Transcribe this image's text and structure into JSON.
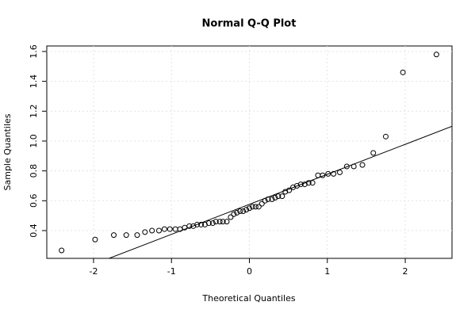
{
  "chart_data": {
    "type": "scatter",
    "title": "Normal Q-Q Plot",
    "x_label": "Theoretical Quantiles",
    "y_label": "Sample Quantiles",
    "series": [
      {
        "color": "#000000",
        "x": [
          -2.41,
          -1.98,
          -1.74,
          -1.58,
          -1.44,
          -1.34,
          -1.25,
          -1.16,
          -1.09,
          -1.02,
          -0.95,
          -0.89,
          -0.83,
          -0.77,
          -0.72,
          -0.67,
          -0.62,
          -0.57,
          -0.52,
          -0.47,
          -0.43,
          -0.38,
          -0.34,
          -0.29,
          -0.24,
          -0.2,
          -0.16,
          -0.12,
          -0.08,
          -0.04,
          0,
          0.04,
          0.08,
          0.12,
          0.16,
          0.2,
          0.24,
          0.29,
          0.33,
          0.37,
          0.42,
          0.46,
          0.51,
          0.56,
          0.61,
          0.66,
          0.71,
          0.76,
          0.81,
          0.88,
          0.94,
          1.01,
          1.08,
          1.16,
          1.25,
          1.34,
          1.45,
          1.59,
          1.75,
          1.97,
          2.4
        ],
        "values": [
          0.267,
          0.34,
          0.37,
          0.37,
          0.37,
          0.39,
          0.4,
          0.4,
          0.41,
          0.41,
          0.41,
          0.41,
          0.42,
          0.43,
          0.43,
          0.44,
          0.44,
          0.44,
          0.45,
          0.45,
          0.46,
          0.46,
          0.46,
          0.46,
          0.49,
          0.51,
          0.52,
          0.53,
          0.53,
          0.54,
          0.55,
          0.56,
          0.56,
          0.56,
          0.58,
          0.6,
          0.61,
          0.61,
          0.62,
          0.63,
          0.63,
          0.66,
          0.67,
          0.69,
          0.7,
          0.71,
          0.71,
          0.72,
          0.72,
          0.77,
          0.77,
          0.78,
          0.78,
          0.79,
          0.83,
          0.83,
          0.84,
          0.92,
          1.03,
          1.46,
          1.58
        ]
      }
    ],
    "reference_line": {
      "intercept": 0.576,
      "slope": 0.201
    },
    "xlim": [
      -2.6,
      2.6
    ],
    "ylim": [
      0.214,
      1.637
    ],
    "xticks": [
      -2,
      -1,
      0,
      1,
      2
    ],
    "yticks": [
      0.4,
      0.6,
      0.8,
      {
        "value": 1,
        "label": "1.0"
      },
      1.2,
      1.4,
      1.6
    ],
    "grid": true
  }
}
